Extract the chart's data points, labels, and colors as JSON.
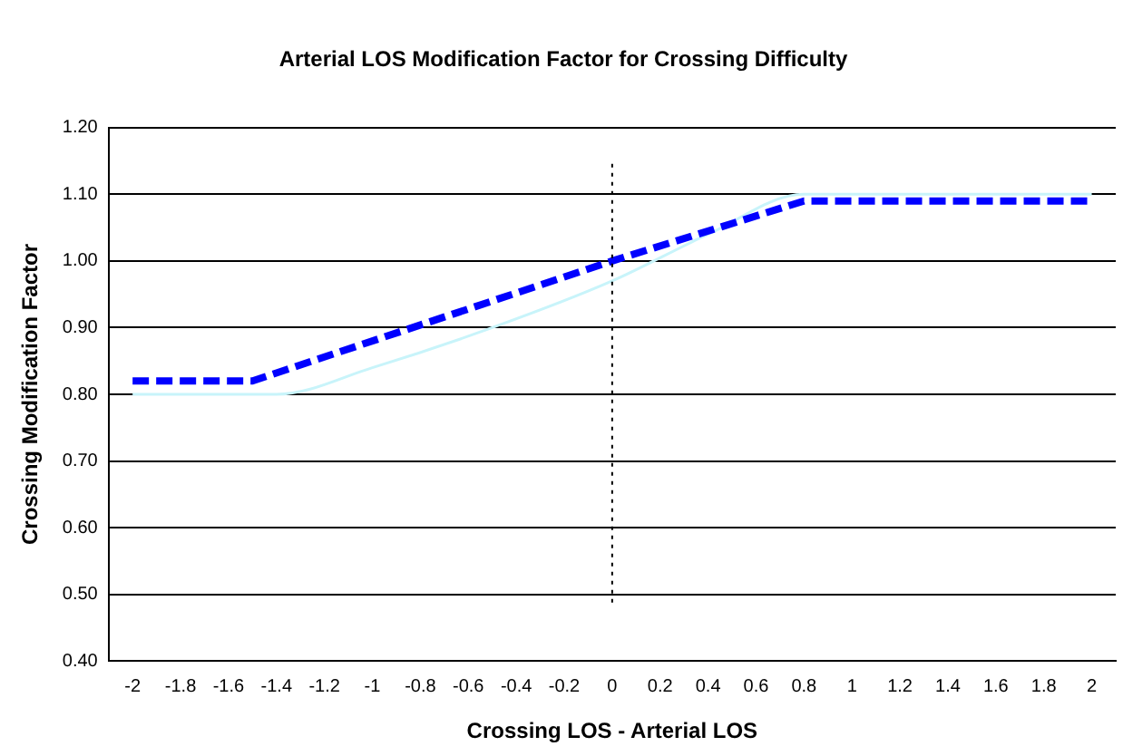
{
  "chart_data": {
    "type": "line",
    "title": "Arterial LOS Modification Factor for Crossing Difficulty",
    "xlabel": "Crossing LOS - Arterial LOS",
    "ylabel": "Crossing Modification Factor",
    "x": [
      -2,
      -1.5,
      0,
      0.8,
      2
    ],
    "series": [
      {
        "color": "#0000ff",
        "values": [
          0.82,
          0.82,
          1.0,
          1.09,
          1.09
        ],
        "line_style": "dashed"
      },
      {
        "color": "#c8f4fa",
        "x": [
          -2,
          -1.4,
          -1,
          -0.5,
          0,
          0.4,
          0.8,
          2
        ],
        "values": [
          0.8,
          0.8,
          0.84,
          0.9,
          0.97,
          1.04,
          1.1,
          1.1
        ],
        "line_style": "solid"
      }
    ],
    "xlim": [
      -2.1,
      2.1
    ],
    "xticks": [
      -2,
      -1.8,
      -1.6,
      -1.4,
      -1.2,
      -1,
      -0.8,
      -0.6,
      -0.4,
      -0.2,
      0,
      0.2,
      0.4,
      0.6,
      0.8,
      1,
      1.2,
      1.4,
      1.6,
      1.8,
      2
    ],
    "ylim": [
      0.4,
      1.2
    ],
    "yticks": [
      {
        "value": 0.4,
        "label": "0.40"
      },
      {
        "value": 0.5,
        "label": "0.50"
      },
      {
        "value": 0.6,
        "label": "0.60"
      },
      {
        "value": 0.7,
        "label": "0.70"
      },
      {
        "value": 0.8,
        "label": "0.80"
      },
      {
        "value": 0.9,
        "label": "0.90"
      },
      {
        "value": 1.0,
        "label": "1.00"
      },
      {
        "value": 1.1,
        "label": "1.10"
      },
      {
        "value": 1.2,
        "label": "1.20"
      }
    ],
    "grid": "y",
    "legend": false,
    "marker": "none",
    "ref_lines": [
      {
        "axis": "x",
        "value": 0,
        "color": "#000000",
        "line_style": "dotted"
      }
    ]
  }
}
